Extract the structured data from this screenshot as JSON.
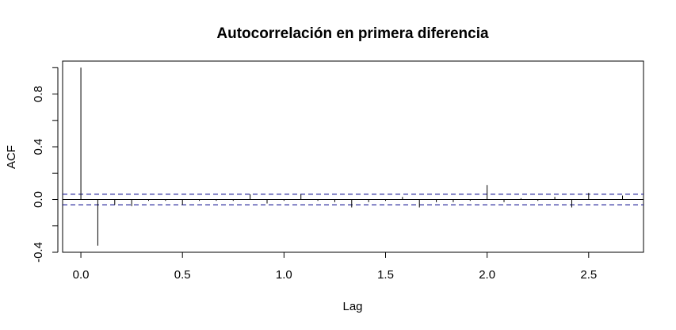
{
  "chart_data": {
    "type": "bar",
    "title": "Autocorrelación en primera diferencia",
    "xlabel": "Lag",
    "ylabel": "ACF",
    "xlim": [
      -0.09,
      2.77
    ],
    "ylim": [
      -0.4,
      1.05
    ],
    "x_ticks": [
      "0.0",
      "0.5",
      "1.0",
      "1.5",
      "2.0",
      "2.5"
    ],
    "x_tick_values": [
      0.0,
      0.5,
      1.0,
      1.5,
      2.0,
      2.5
    ],
    "y_ticks": [
      "-0.4",
      "0.0",
      "0.4",
      "0.8"
    ],
    "y_tick_values": [
      -0.4,
      0.0,
      0.4,
      0.8
    ],
    "y_minor_ticks": [
      -0.4,
      -0.2,
      0.0,
      0.2,
      0.4,
      0.6,
      0.8,
      1.0
    ],
    "confidence_bounds": [
      0.04,
      -0.04
    ],
    "confidence_color": "#00008B",
    "x": [
      0.0,
      0.0833,
      0.1667,
      0.25,
      0.3333,
      0.4167,
      0.5,
      0.5833,
      0.6667,
      0.75,
      0.8333,
      0.9167,
      1.0,
      1.0833,
      1.1667,
      1.25,
      1.3333,
      1.4167,
      1.5,
      1.5833,
      1.6667,
      1.75,
      1.8333,
      1.9167,
      2.0,
      2.0833,
      2.1667,
      2.25,
      2.3333,
      2.4167,
      2.5,
      2.5833,
      2.6667
    ],
    "values": [
      1.0,
      -0.35,
      -0.04,
      -0.05,
      -0.01,
      -0.01,
      -0.04,
      -0.01,
      -0.01,
      -0.01,
      0.04,
      -0.03,
      -0.01,
      0.04,
      -0.01,
      -0.02,
      -0.06,
      -0.02,
      -0.01,
      0.02,
      -0.06,
      -0.02,
      -0.02,
      -0.01,
      0.11,
      -0.02,
      0.01,
      -0.01,
      0.02,
      -0.06,
      0.05,
      0.0,
      0.03
    ]
  }
}
